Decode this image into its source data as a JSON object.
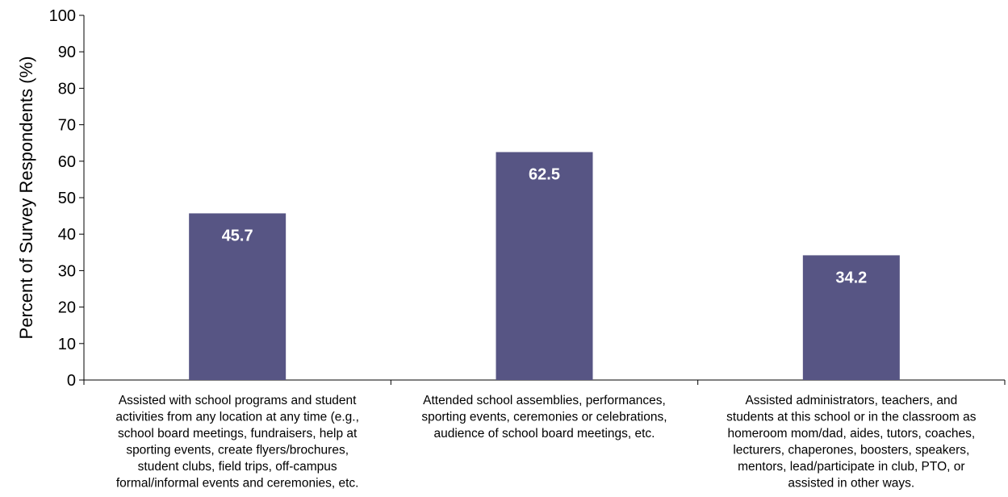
{
  "chart_data": {
    "type": "bar",
    "categories": [
      [
        "Assisted with school programs and student",
        "activities from any location at any time (e.g.,",
        "school board meetings, fundraisers, help at",
        "sporting events, create flyers/brochures,",
        "student clubs, field trips, off-campus",
        "formal/informal events and ceremonies, etc."
      ],
      [
        "Attended  school assemblies, performances,",
        "sporting events, ceremonies or celebrations,",
        "audience of school board meetings, etc."
      ],
      [
        "Assisted administrators, teachers, and",
        "students at this school or in the classroom as",
        "homeroom mom/dad, aides, tutors, coaches,",
        "lecturers, chaperones, boosters, speakers,",
        "mentors, lead/participate in club, PTO, or",
        "assisted in other ways."
      ]
    ],
    "values": [
      45.7,
      62.5,
      34.2
    ],
    "data_labels": [
      "45.7",
      "62.5",
      "34.2"
    ],
    "ylabel": "Percent of Survey Respondents (%)",
    "xlabel": "",
    "ylim": [
      0,
      100
    ],
    "yticks": [
      "0",
      "10",
      "20",
      "30",
      "40",
      "50",
      "60",
      "70",
      "80",
      "90",
      "100"
    ],
    "grid": false,
    "legend": "none",
    "colors": {
      "bar": "#575584",
      "data_label": "#ffffff",
      "axis": "#000000"
    }
  }
}
